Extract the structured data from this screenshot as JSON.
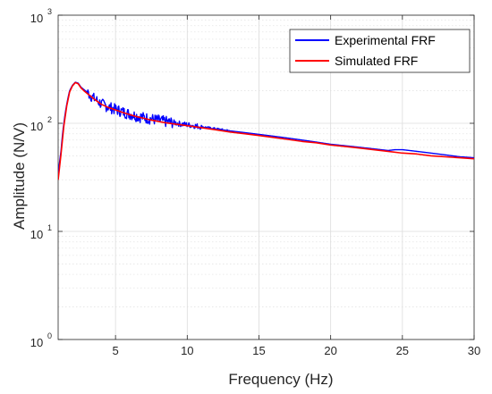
{
  "chart_data": {
    "type": "line",
    "xlabel": "Frequency (Hz)",
    "ylabel": "Amplitude (N/V)",
    "xlim": [
      1,
      30
    ],
    "ylim": [
      1,
      1000
    ],
    "yscale": "log",
    "x_ticks": [
      5,
      10,
      15,
      20,
      25,
      30
    ],
    "y_ticks": [
      {
        "value": 1,
        "base": "10",
        "exp": "0"
      },
      {
        "value": 10,
        "base": "10",
        "exp": "1"
      },
      {
        "value": 100,
        "base": "10",
        "exp": "2"
      },
      {
        "value": 1000,
        "base": "10",
        "exp": "3"
      }
    ],
    "grid": true,
    "legend_position": "top-right",
    "series": [
      {
        "name": "Experimental FRF",
        "color": "#0000ff",
        "noisy": true,
        "x": [
          1.0,
          1.2,
          1.4,
          1.6,
          1.8,
          2.0,
          2.2,
          2.4,
          2.6,
          2.8,
          3.0,
          3.5,
          4.0,
          4.5,
          5.0,
          5.5,
          6.0,
          6.5,
          7.0,
          7.5,
          8.0,
          8.5,
          9.0,
          9.5,
          10.0,
          10.5,
          11.0,
          12.0,
          13.0,
          14.0,
          15.0,
          16.0,
          17.0,
          18.0,
          19.0,
          20.0,
          21.0,
          22.0,
          23.0,
          24.0,
          24.5,
          25.0,
          25.5,
          26.0,
          27.0,
          28.0,
          29.0,
          30.0
        ],
        "y": [
          33,
          55,
          100,
          150,
          200,
          225,
          240,
          235,
          215,
          205,
          195,
          170,
          152,
          142,
          135,
          128,
          122,
          117,
          113,
          110,
          107,
          104,
          102,
          99,
          97,
          95,
          93,
          89,
          85,
          82,
          79,
          76,
          73,
          70,
          67,
          64,
          62,
          60,
          58,
          56,
          57,
          57,
          56,
          55,
          53,
          51,
          49,
          48
        ]
      },
      {
        "name": "Simulated FRF",
        "color": "#ff0000",
        "noisy": false,
        "x": [
          1.0,
          1.2,
          1.4,
          1.6,
          1.8,
          2.0,
          2.2,
          2.4,
          2.6,
          2.8,
          3.0,
          3.5,
          4.0,
          4.5,
          5.0,
          5.5,
          6.0,
          6.5,
          7.0,
          7.5,
          8.0,
          8.5,
          9.0,
          9.5,
          10.0,
          10.5,
          11.0,
          12.0,
          13.0,
          14.0,
          15.0,
          16.0,
          17.0,
          18.0,
          19.0,
          20.0,
          21.0,
          22.0,
          23.0,
          24.0,
          25.0,
          26.0,
          27.0,
          28.0,
          29.0,
          30.0
        ],
        "y": [
          30,
          52,
          95,
          145,
          195,
          222,
          238,
          232,
          212,
          200,
          190,
          168,
          150,
          140,
          133,
          126,
          120,
          115,
          111,
          107,
          104,
          101,
          99,
          97,
          95,
          93,
          91,
          87,
          83,
          80,
          77,
          74,
          71,
          68,
          66,
          63,
          61,
          59,
          57,
          55,
          53,
          52,
          50,
          49,
          48,
          47
        ]
      }
    ]
  }
}
